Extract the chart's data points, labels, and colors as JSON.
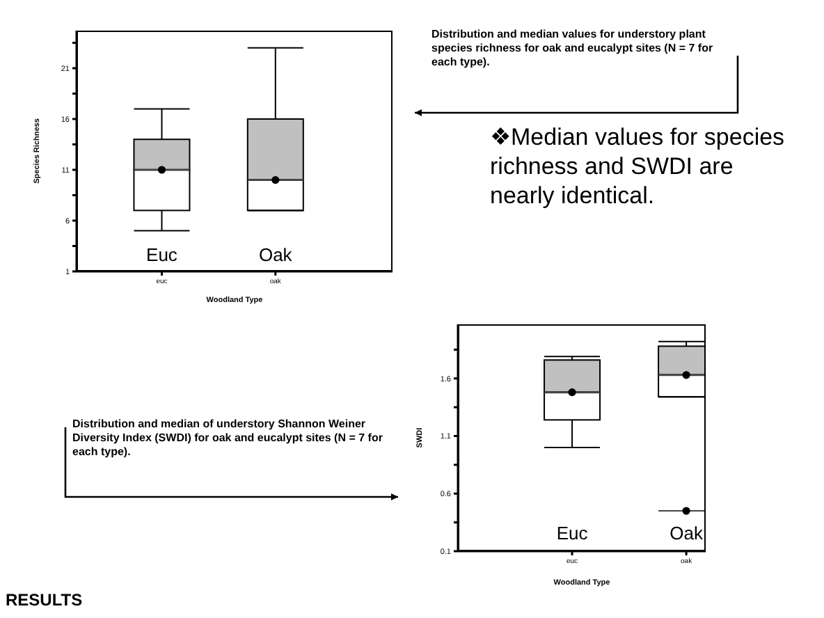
{
  "chart_data": [
    {
      "type": "box",
      "xlabel": "Woodland Type",
      "ylabel": "Species Richness",
      "categories": [
        "euc",
        "oak"
      ],
      "color": "#c0c0c0",
      "ylim": [
        1,
        24.7
      ],
      "yticks": [
        1,
        {
          "value": 3.5,
          "label": null
        },
        6,
        {
          "value": 8.5,
          "label": null
        },
        11,
        {
          "value": 13.5,
          "label": null
        },
        16,
        {
          "value": 18.5,
          "label": null
        },
        21,
        {
          "value": 23.5,
          "label": null
        }
      ],
      "boxes": [
        {
          "low": 5,
          "q1": 7,
          "median": 11,
          "q3": 14,
          "high": 17,
          "mean": 11
        },
        {
          "low": 7,
          "q1": 7,
          "median": 10,
          "q3": 16,
          "high": 23,
          "mean": 10
        }
      ],
      "annotations": [
        "Euc",
        "Oak",
        "Distribution and median values for understory plant species richness for oak and eucalypt sites (N = 7 for each type)."
      ]
    },
    {
      "type": "box",
      "xlabel": "Woodland Type",
      "ylabel": "SWDI",
      "categories": [
        "euc",
        "oak"
      ],
      "color": "#c0c0c0",
      "ylim": [
        0.1,
        2.07
      ],
      "yticks": [
        0.1,
        {
          "value": 0.35,
          "label": null
        },
        0.6,
        {
          "value": 0.85,
          "label": null
        },
        1.1,
        {
          "value": 1.35,
          "label": null
        },
        1.6,
        {
          "value": 1.85,
          "label": null
        }
      ],
      "boxes": [
        {
          "low": 1.0,
          "q1": 1.24,
          "median": 1.48,
          "q3": 1.76,
          "high": 1.79,
          "mean": 1.48
        },
        {
          "low": 1.44,
          "q1": 1.44,
          "median": 1.63,
          "q3": 1.88,
          "high": 1.92,
          "mean": 1.63,
          "outliers": [
            0.45
          ]
        }
      ],
      "annotations": [
        "Euc",
        "Oak",
        "Distribution and median of understory Shannon Weiner Diversity Index (SWDI) for oak and eucalypt sites (N = 7 for each type)."
      ]
    },
    {
      "type": "other",
      "title": "RESULTS",
      "annotations": [
        "❖Median values for species richness and SWDI are nearly identical."
      ]
    }
  ]
}
